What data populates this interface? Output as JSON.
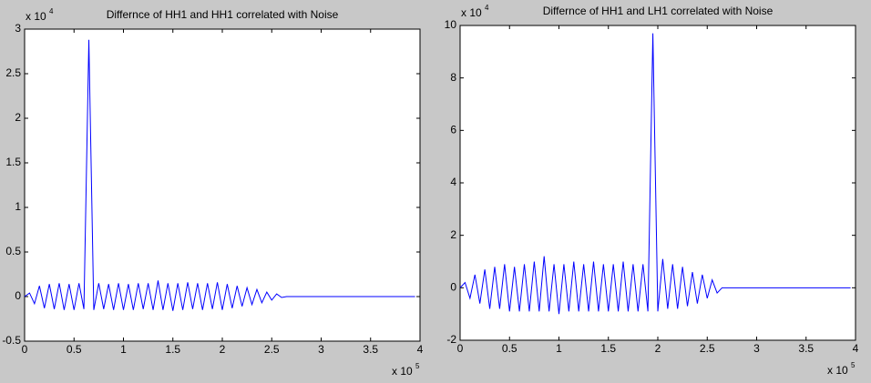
{
  "chart_data": [
    {
      "type": "line",
      "title": "Differnce of HH1 and HH1 correlated with Noise",
      "x": [
        0,
        0.05,
        0.1,
        0.15,
        0.2,
        0.25,
        0.3,
        0.35,
        0.4,
        0.45,
        0.5,
        0.55,
        0.6,
        0.65,
        0.7,
        0.75,
        0.8,
        0.85,
        0.9,
        0.95,
        1.0,
        1.05,
        1.1,
        1.15,
        1.2,
        1.25,
        1.3,
        1.35,
        1.4,
        1.45,
        1.5,
        1.55,
        1.6,
        1.65,
        1.7,
        1.75,
        1.8,
        1.85,
        1.9,
        1.95,
        2.0,
        2.05,
        2.1,
        2.15,
        2.2,
        2.25,
        2.3,
        2.35,
        2.4,
        2.45,
        2.5,
        2.55,
        2.6,
        2.65,
        3.95
      ],
      "series": [
        {
          "color": "#0000ff",
          "values": [
            0,
            0.04,
            -0.08,
            0.12,
            -0.13,
            0.14,
            -0.14,
            0.15,
            -0.15,
            0.14,
            -0.15,
            0.15,
            -0.14,
            2.88,
            -0.15,
            0.15,
            -0.14,
            0.14,
            -0.15,
            0.15,
            -0.15,
            0.14,
            -0.15,
            0.15,
            -0.14,
            0.15,
            -0.15,
            0.18,
            -0.15,
            0.15,
            -0.16,
            0.15,
            -0.15,
            0.16,
            -0.14,
            0.15,
            -0.15,
            0.15,
            -0.14,
            0.16,
            -0.15,
            0.14,
            -0.13,
            0.12,
            -0.11,
            0.1,
            -0.09,
            0.08,
            -0.07,
            0.05,
            -0.04,
            0.03,
            -0.01,
            0,
            0
          ]
        }
      ],
      "xlim": [
        0,
        4
      ],
      "xticks": [
        0,
        0.5,
        1,
        1.5,
        2,
        2.5,
        3,
        3.5,
        4
      ],
      "ylim": [
        -0.5,
        3
      ],
      "yticks": [
        -0.5,
        0,
        0.5,
        1,
        1.5,
        2,
        2.5,
        3
      ],
      "x_multiplier": {
        "base": "x 10",
        "power": "5"
      },
      "y_multiplier": {
        "base": "x 10",
        "power": "4"
      }
    },
    {
      "type": "line",
      "title": "Differnce of HH1 and LH1 correlated with Noise",
      "x": [
        0,
        0.05,
        0.1,
        0.15,
        0.2,
        0.25,
        0.3,
        0.35,
        0.4,
        0.45,
        0.5,
        0.55,
        0.6,
        0.65,
        0.7,
        0.75,
        0.8,
        0.85,
        0.9,
        0.95,
        1.0,
        1.05,
        1.1,
        1.15,
        1.2,
        1.25,
        1.3,
        1.35,
        1.4,
        1.45,
        1.5,
        1.55,
        1.6,
        1.65,
        1.7,
        1.75,
        1.8,
        1.85,
        1.9,
        1.95,
        2.0,
        2.05,
        2.1,
        2.15,
        2.2,
        2.25,
        2.3,
        2.35,
        2.4,
        2.45,
        2.5,
        2.55,
        2.6,
        2.65,
        3.95
      ],
      "series": [
        {
          "color": "#0000ff",
          "values": [
            0,
            0.2,
            -0.4,
            0.5,
            -0.6,
            0.7,
            -0.8,
            0.8,
            -0.8,
            0.9,
            -0.9,
            0.8,
            -0.9,
            0.9,
            -0.9,
            1.0,
            -0.9,
            1.2,
            -0.9,
            0.9,
            -1.0,
            0.9,
            -0.9,
            1.0,
            -0.9,
            0.9,
            -0.9,
            1.0,
            -0.9,
            0.9,
            -0.9,
            0.9,
            -0.9,
            1.0,
            -0.9,
            0.9,
            -0.9,
            0.9,
            -0.9,
            9.7,
            -0.9,
            1.1,
            -0.8,
            0.9,
            -0.8,
            0.8,
            -0.7,
            0.6,
            -0.6,
            0.5,
            -0.4,
            0.3,
            -0.2,
            0,
            0
          ]
        }
      ],
      "xlim": [
        0,
        4
      ],
      "xticks": [
        0,
        0.5,
        1,
        1.5,
        2,
        2.5,
        3,
        3.5,
        4
      ],
      "ylim": [
        -2,
        10
      ],
      "yticks": [
        -2,
        0,
        2,
        4,
        6,
        8,
        10
      ],
      "x_multiplier": {
        "base": "x 10",
        "power": "5"
      },
      "y_multiplier": {
        "base": "x 10",
        "power": "4"
      }
    }
  ]
}
